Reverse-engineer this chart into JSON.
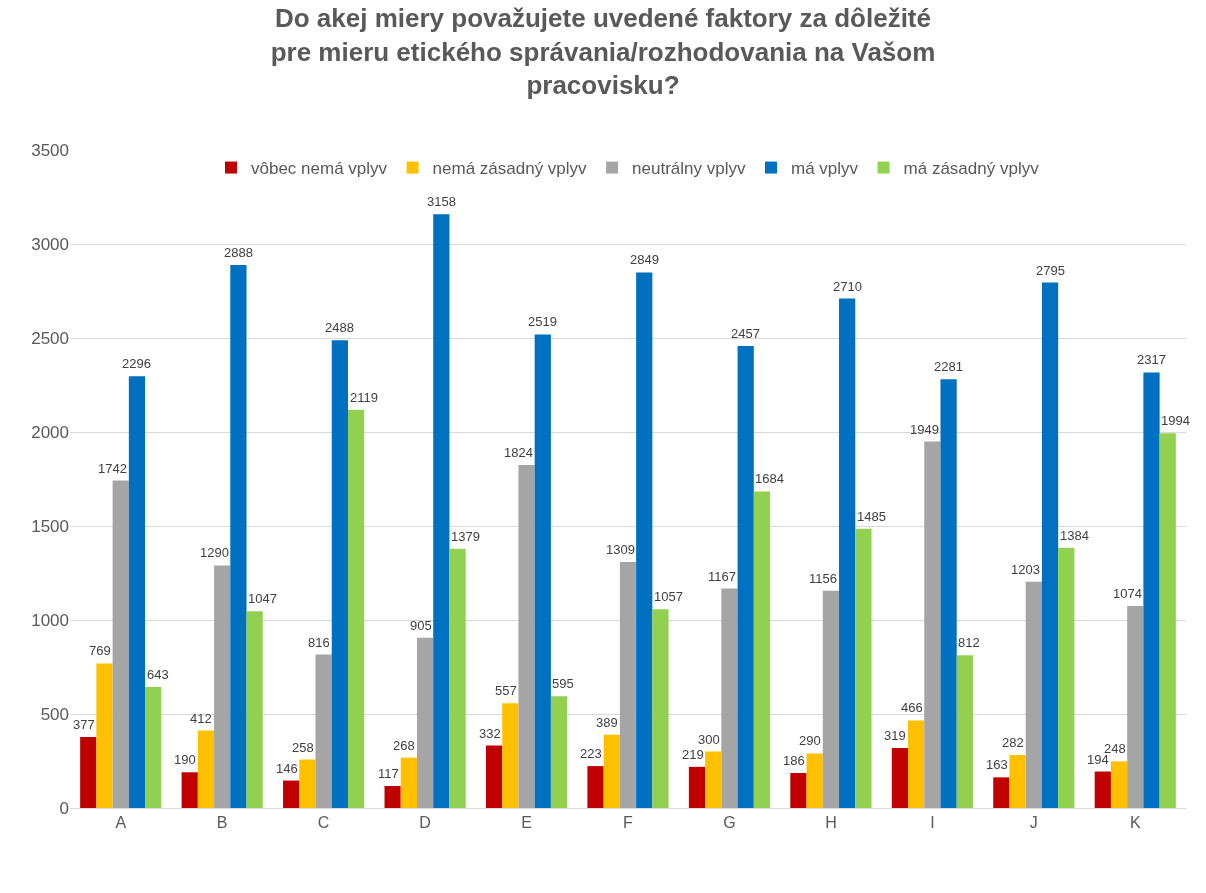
{
  "chart_data": {
    "type": "bar",
    "title": "Do akej miery považujete uvedené faktory za dôležité pre mieru etického správania/rozhodovania na Vašom pracovisku?",
    "categories": [
      "A",
      "B",
      "C",
      "D",
      "E",
      "F",
      "G",
      "H",
      "I",
      "J",
      "K"
    ],
    "series": [
      {
        "name": "vôbec nemá vplyv",
        "color": "#c00000",
        "values": [
          377,
          190,
          146,
          117,
          332,
          223,
          219,
          186,
          319,
          163,
          194
        ]
      },
      {
        "name": "nemá zásadný vplyv",
        "color": "#ffc000",
        "values": [
          769,
          412,
          258,
          268,
          557,
          389,
          300,
          290,
          466,
          282,
          248
        ]
      },
      {
        "name": "neutrálny vplyv",
        "color": "#a5a5a5",
        "values": [
          1742,
          1290,
          816,
          905,
          1824,
          1309,
          1167,
          1156,
          1949,
          1203,
          1074
        ]
      },
      {
        "name": "má vplyv",
        "color": "#0070c0",
        "values": [
          2296,
          2888,
          2488,
          3158,
          2519,
          2849,
          2457,
          2710,
          2281,
          2795,
          2317
        ]
      },
      {
        "name": "má zásadný vplyv",
        "color": "#92d050",
        "values": [
          643,
          1047,
          2119,
          1379,
          595,
          1057,
          1684,
          1485,
          812,
          1384,
          1994
        ]
      }
    ],
    "ylim": [
      0,
      3500
    ],
    "yticks": [
      0,
      500,
      1000,
      1500,
      2000,
      2500,
      3000,
      3500
    ],
    "grid": "y",
    "legend": "top",
    "data_labels": true
  }
}
